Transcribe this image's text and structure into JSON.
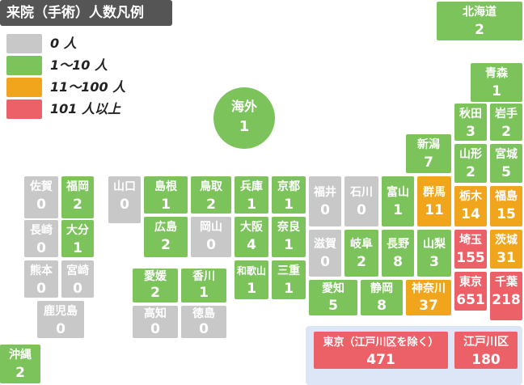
{
  "legend": {
    "title": "来院（手術）人数凡例",
    "items": [
      {
        "label": "0 人",
        "color": "#c8c8c8"
      },
      {
        "label": "1〜10 人",
        "color": "#7cc35c"
      },
      {
        "label": "11〜100 人",
        "color": "#f0a51c"
      },
      {
        "label": "101 人以上",
        "color": "#ec6068"
      }
    ]
  },
  "overseas": {
    "name": "海外",
    "count": "1"
  },
  "prefectures": [
    {
      "name": "北海道",
      "count": "2",
      "tier": 1
    },
    {
      "name": "青森",
      "count": "1",
      "tier": 1
    },
    {
      "name": "秋田",
      "count": "3",
      "tier": 1
    },
    {
      "name": "岩手",
      "count": "2",
      "tier": 1
    },
    {
      "name": "山形",
      "count": "2",
      "tier": 1
    },
    {
      "name": "宮城",
      "count": "5",
      "tier": 1
    },
    {
      "name": "新潟",
      "count": "7",
      "tier": 1
    },
    {
      "name": "栃木",
      "count": "14",
      "tier": 2
    },
    {
      "name": "福島",
      "count": "15",
      "tier": 2
    },
    {
      "name": "群馬",
      "count": "11",
      "tier": 2
    },
    {
      "name": "埼玉",
      "count": "155",
      "tier": 3
    },
    {
      "name": "茨城",
      "count": "31",
      "tier": 2
    },
    {
      "name": "東京",
      "count": "651",
      "tier": 3
    },
    {
      "name": "千葉",
      "count": "218",
      "tier": 3
    },
    {
      "name": "神奈川",
      "count": "37",
      "tier": 2
    },
    {
      "name": "山梨",
      "count": "3",
      "tier": 1
    },
    {
      "name": "長野",
      "count": "8",
      "tier": 1
    },
    {
      "name": "富山",
      "count": "1",
      "tier": 1
    },
    {
      "name": "石川",
      "count": "0",
      "tier": 0
    },
    {
      "name": "福井",
      "count": "0",
      "tier": 0
    },
    {
      "name": "岐阜",
      "count": "2",
      "tier": 1
    },
    {
      "name": "滋賀",
      "count": "0",
      "tier": 0
    },
    {
      "name": "静岡",
      "count": "8",
      "tier": 1
    },
    {
      "name": "愛知",
      "count": "5",
      "tier": 1
    },
    {
      "name": "京都",
      "count": "1",
      "tier": 1
    },
    {
      "name": "兵庫",
      "count": "1",
      "tier": 1
    },
    {
      "name": "大阪",
      "count": "4",
      "tier": 1
    },
    {
      "name": "奈良",
      "count": "1",
      "tier": 1
    },
    {
      "name": "和歌山",
      "count": "1",
      "tier": 1
    },
    {
      "name": "三重",
      "count": "1",
      "tier": 1
    },
    {
      "name": "鳥取",
      "count": "2",
      "tier": 1
    },
    {
      "name": "島根",
      "count": "1",
      "tier": 1
    },
    {
      "name": "岡山",
      "count": "0",
      "tier": 0
    },
    {
      "name": "広島",
      "count": "2",
      "tier": 1
    },
    {
      "name": "山口",
      "count": "0",
      "tier": 0
    },
    {
      "name": "香川",
      "count": "1",
      "tier": 1
    },
    {
      "name": "愛媛",
      "count": "2",
      "tier": 1
    },
    {
      "name": "徳島",
      "count": "0",
      "tier": 0
    },
    {
      "name": "高知",
      "count": "0",
      "tier": 0
    },
    {
      "name": "福岡",
      "count": "2",
      "tier": 1
    },
    {
      "name": "佐賀",
      "count": "0",
      "tier": 0
    },
    {
      "name": "長崎",
      "count": "0",
      "tier": 0
    },
    {
      "name": "大分",
      "count": "1",
      "tier": 1
    },
    {
      "name": "熊本",
      "count": "0",
      "tier": 0
    },
    {
      "name": "宮崎",
      "count": "0",
      "tier": 0
    },
    {
      "name": "鹿児島",
      "count": "0",
      "tier": 0
    },
    {
      "name": "沖縄",
      "count": "2",
      "tier": 1
    }
  ],
  "tokyo_breakdown": [
    {
      "name": "東京（江戸川区を除く）",
      "count": "471",
      "tier": 3
    },
    {
      "name": "江戸川区",
      "count": "180",
      "tier": 3
    }
  ]
}
